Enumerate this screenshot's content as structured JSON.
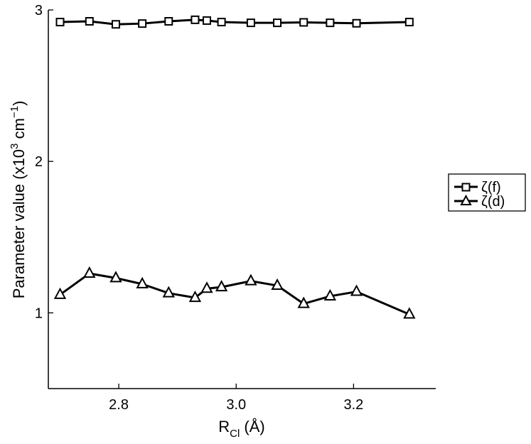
{
  "chart_data": {
    "type": "line",
    "xlabel": {
      "main": "R",
      "sub": "Cl",
      "rest": " (Å)"
    },
    "ylabel": {
      "text": "Parameter value (x10",
      "sup1": "3",
      "mid": " cm",
      "sup2": "−1",
      "end": ")"
    },
    "xlim": [
      2.68,
      3.34
    ],
    "ylim": [
      0.5,
      3.0
    ],
    "xticks": [
      2.8,
      3.0,
      3.2
    ],
    "xtick_labels": [
      "2.8",
      "3.0",
      "3.2"
    ],
    "yticks": [
      1,
      2,
      3
    ],
    "ytick_labels": [
      "1",
      "2",
      "3"
    ],
    "grid": false,
    "legend_position": "right",
    "series": [
      {
        "name": "ζ(f)",
        "marker": "square",
        "x": [
          2.7,
          2.75,
          2.795,
          2.84,
          2.885,
          2.93,
          2.95,
          2.975,
          3.025,
          3.07,
          3.115,
          3.16,
          3.205,
          3.295
        ],
        "y": [
          2.92,
          2.925,
          2.905,
          2.91,
          2.925,
          2.935,
          2.93,
          2.92,
          2.915,
          2.915,
          2.918,
          2.915,
          2.912,
          2.92
        ]
      },
      {
        "name": "ζ(d)",
        "marker": "triangle",
        "x": [
          2.7,
          2.75,
          2.795,
          2.84,
          2.885,
          2.93,
          2.95,
          2.975,
          3.025,
          3.07,
          3.115,
          3.16,
          3.205,
          3.295
        ],
        "y": [
          1.12,
          1.26,
          1.23,
          1.19,
          1.13,
          1.1,
          1.16,
          1.17,
          1.21,
          1.18,
          1.06,
          1.11,
          1.14,
          0.99
        ]
      }
    ]
  }
}
